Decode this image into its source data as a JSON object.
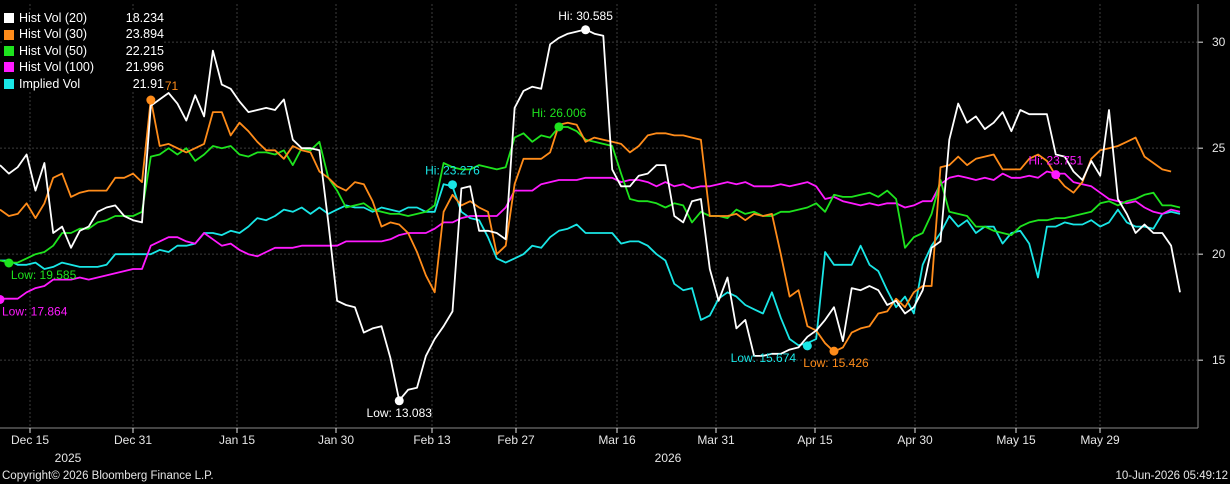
{
  "chart_data": {
    "type": "line",
    "x_axis": {
      "tick_labels": [
        "Dec 15",
        "Dec 31",
        "Jan 15",
        "Jan 30",
        "Feb 13",
        "Feb 27",
        "Mar 16",
        "Mar 31",
        "Apr 15",
        "Apr 30",
        "May 15",
        "May 29"
      ],
      "year_labels": [
        "2025",
        "2026"
      ]
    },
    "y_axis": {
      "ticks": [
        15,
        20,
        25,
        30
      ],
      "ylim": [
        11.8,
        31.8
      ],
      "side": "right",
      "grid": true
    },
    "series": [
      {
        "name": "Hist Vol (20)",
        "last": "18.234",
        "color": "#ffffff",
        "values": [
          24.2,
          23.8,
          24.1,
          24.7,
          23.0,
          24.3,
          21.0,
          21.3,
          20.3,
          21.1,
          21.3,
          22.0,
          22.2,
          22.3,
          21.8,
          21.6,
          21.5,
          27.0,
          27.3,
          27.6,
          27.1,
          26.3,
          27.5,
          26.5,
          29.6,
          28.0,
          27.8,
          27.2,
          26.7,
          26.8,
          26.9,
          26.8,
          27.3,
          25.4,
          25.0,
          25.0,
          24.9,
          21.5,
          17.8,
          17.6,
          17.5,
          16.3,
          16.5,
          16.6,
          15.1,
          13.1,
          13.6,
          13.7,
          15.2,
          16.0,
          16.6,
          17.3,
          23.1,
          23.2,
          21.1,
          21.1,
          21.0,
          20.7,
          26.9,
          27.7,
          27.9,
          27.8,
          29.9,
          30.2,
          30.4,
          30.5,
          30.6,
          30.4,
          30.3,
          24.0,
          23.2,
          23.2,
          23.7,
          23.8,
          24.2,
          24.2,
          21.8,
          21.5,
          22.5,
          22.6,
          19.3,
          17.8,
          18.9,
          16.5,
          16.9,
          15.2,
          15.2,
          15.3,
          15.3,
          15.5,
          15.6,
          16.1,
          16.4,
          16.9,
          17.5,
          15.9,
          18.4,
          18.3,
          18.5,
          18.3,
          17.6,
          17.8,
          17.2,
          17.5,
          18.3,
          20.3,
          20.6,
          25.4,
          27.1,
          26.2,
          26.5,
          25.9,
          26.2,
          26.7,
          25.8,
          26.8,
          26.6,
          26.6,
          26.6,
          24.7,
          24.6,
          23.9,
          23.5,
          24.4,
          23.7,
          26.8,
          22.6,
          21.9,
          21.0,
          21.4,
          21.0,
          21.0,
          20.4,
          18.2
        ]
      },
      {
        "name": "Hist Vol (30)",
        "last": "23.894",
        "color": "#ff8c1a",
        "values": [
          22.1,
          21.8,
          21.9,
          22.4,
          21.7,
          22.4,
          23.6,
          23.8,
          22.7,
          22.9,
          23.0,
          23.0,
          23.0,
          23.6,
          23.6,
          23.8,
          23.4,
          27.3,
          25.1,
          25.2,
          25.0,
          24.8,
          25.0,
          25.2,
          26.7,
          26.7,
          25.6,
          26.2,
          25.8,
          25.3,
          24.9,
          24.9,
          24.5,
          25.1,
          24.9,
          24.8,
          23.9,
          23.6,
          23.2,
          23.0,
          23.4,
          23.3,
          22.5,
          21.3,
          21.5,
          21.4,
          21.0,
          20.1,
          19.0,
          18.2,
          22.0,
          22.8,
          22.3,
          22.5,
          22.2,
          22.0,
          20.0,
          20.4,
          23.3,
          24.5,
          24.5,
          24.5,
          24.8,
          26.1,
          26.2,
          26.1,
          25.3,
          25.5,
          25.4,
          25.3,
          25.2,
          24.8,
          25.1,
          25.6,
          25.7,
          25.7,
          25.6,
          25.6,
          25.5,
          25.4,
          21.8,
          21.8,
          21.8,
          21.9,
          21.6,
          21.9,
          21.8,
          21.9,
          20.0,
          18.0,
          18.3,
          16.6,
          16.4,
          15.8,
          15.4,
          15.6,
          16.3,
          16.5,
          16.6,
          17.2,
          17.3,
          17.9,
          17.5,
          18.2,
          18.5,
          18.5,
          24.1,
          24.2,
          24.6,
          24.2,
          24.5,
          24.6,
          24.7,
          24.0,
          24.0,
          24.0,
          24.5,
          24.7,
          24.4,
          23.7,
          23.2,
          22.9,
          23.4,
          24.5,
          24.9,
          25.0,
          25.1,
          25.3,
          25.5,
          24.6,
          24.3,
          24.0,
          23.9
        ]
      },
      {
        "name": "Hist Vol (50)",
        "last": "22.215",
        "color": "#1ee31e",
        "values": [
          19.7,
          19.6,
          19.6,
          19.8,
          20.0,
          20.1,
          20.4,
          21.0,
          21.0,
          21.2,
          21.2,
          21.5,
          21.6,
          21.8,
          21.8,
          21.8,
          22.0,
          24.6,
          24.7,
          25.0,
          24.7,
          25.0,
          24.4,
          24.7,
          25.1,
          25.0,
          25.1,
          24.7,
          24.6,
          24.8,
          24.8,
          24.7,
          24.9,
          24.2,
          25.0,
          24.9,
          25.3,
          23.6,
          23.0,
          22.2,
          22.3,
          22.4,
          22.1,
          22.0,
          21.9,
          21.9,
          21.8,
          21.9,
          22.0,
          22.3,
          24.3,
          24.1,
          24.0,
          24.0,
          24.2,
          24.1,
          24.0,
          24.1,
          25.5,
          25.7,
          25.3,
          25.6,
          25.5,
          26.0,
          26.0,
          25.8,
          25.4,
          25.3,
          25.2,
          25.1,
          23.8,
          22.6,
          22.5,
          22.5,
          22.4,
          22.2,
          22.4,
          22.3,
          21.5,
          22.0,
          21.8,
          21.8,
          21.7,
          22.1,
          21.9,
          22.0,
          21.8,
          21.8,
          22.0,
          22.0,
          22.1,
          22.2,
          22.4,
          22.0,
          22.8,
          22.7,
          22.7,
          22.8,
          22.9,
          22.7,
          23.0,
          22.6,
          20.3,
          20.8,
          21.0,
          21.9,
          23.5,
          22.0,
          21.9,
          21.8,
          21.3,
          21.3,
          21.1,
          21.0,
          20.9,
          21.3,
          21.5,
          21.6,
          21.6,
          21.7,
          21.7,
          21.8,
          21.9,
          22.0,
          22.4,
          22.5,
          22.3,
          22.5,
          22.6,
          22.8,
          22.9,
          22.3,
          22.3,
          22.2
        ]
      },
      {
        "name": "Hist Vol (100)",
        "last": "21.996",
        "color": "#ff1aff",
        "values": [
          17.9,
          17.9,
          17.9,
          18.2,
          18.4,
          18.5,
          18.8,
          18.8,
          18.8,
          18.9,
          18.8,
          18.9,
          19.0,
          19.1,
          19.2,
          19.3,
          19.3,
          20.4,
          20.6,
          20.8,
          20.8,
          20.6,
          20.5,
          21.0,
          20.7,
          20.4,
          20.5,
          20.2,
          20.0,
          19.9,
          20.1,
          20.3,
          20.3,
          20.3,
          20.4,
          20.4,
          20.4,
          20.4,
          20.4,
          20.6,
          20.6,
          20.6,
          20.6,
          20.6,
          20.7,
          20.9,
          21.0,
          21.0,
          21.0,
          21.2,
          21.5,
          21.5,
          21.7,
          21.8,
          21.8,
          21.8,
          21.8,
          22.2,
          23.0,
          23.0,
          23.0,
          23.3,
          23.4,
          23.5,
          23.5,
          23.5,
          23.6,
          23.6,
          23.6,
          23.6,
          23.4,
          23.5,
          23.5,
          23.4,
          23.2,
          23.4,
          23.2,
          23.3,
          23.1,
          23.2,
          23.2,
          23.3,
          23.4,
          23.3,
          23.4,
          23.2,
          23.2,
          23.2,
          23.3,
          23.2,
          23.3,
          23.4,
          23.2,
          22.6,
          22.7,
          22.5,
          22.4,
          22.3,
          22.4,
          22.3,
          22.4,
          22.4,
          22.2,
          22.3,
          22.5,
          22.5,
          23.3,
          23.6,
          23.7,
          23.6,
          23.5,
          23.6,
          23.5,
          23.8,
          23.6,
          23.6,
          23.7,
          23.6,
          23.9,
          23.8,
          23.8,
          23.4,
          23.3,
          23.2,
          22.9,
          22.6,
          22.5,
          22.4,
          22.5,
          22.2,
          22.0,
          21.9,
          22.1,
          22.0
        ]
      },
      {
        "name": "Implied Vol",
        "last": "21.91",
        "color": "#19e6e6",
        "values": [
          19.7,
          19.7,
          19.5,
          19.5,
          19.6,
          19.3,
          19.4,
          19.6,
          19.5,
          19.4,
          19.4,
          19.4,
          19.5,
          20.0,
          20.0,
          20.0,
          20.0,
          20.0,
          20.2,
          20.1,
          20.4,
          20.4,
          20.5,
          21.0,
          21.0,
          20.9,
          21.1,
          21.0,
          21.3,
          21.7,
          21.6,
          21.8,
          22.1,
          22.0,
          22.2,
          21.9,
          22.2,
          21.9,
          22.1,
          22.3,
          22.2,
          22.2,
          22.0,
          22.2,
          22.1,
          22.0,
          22.2,
          22.2,
          22.0,
          22.0,
          23.3,
          23.2,
          22.0,
          21.7,
          21.6,
          20.8,
          19.8,
          19.6,
          19.8,
          20.0,
          20.4,
          20.3,
          20.8,
          21.1,
          21.2,
          21.4,
          21.0,
          21.0,
          21.0,
          21.0,
          20.5,
          20.6,
          20.6,
          20.4,
          20.0,
          19.7,
          18.6,
          18.3,
          18.4,
          16.9,
          17.1,
          17.9,
          18.2,
          18.0,
          17.6,
          17.4,
          17.2,
          18.2,
          17.0,
          16.0,
          15.7,
          15.8,
          16.0,
          20.1,
          19.5,
          19.5,
          19.5,
          20.4,
          19.5,
          19.2,
          18.3,
          17.5,
          18.0,
          17.2,
          19.5,
          20.4,
          21.0,
          21.8,
          21.3,
          21.6,
          21.0,
          21.3,
          21.3,
          20.5,
          21.0,
          21.1,
          20.5,
          18.9,
          21.3,
          21.3,
          21.5,
          21.4,
          21.4,
          21.6,
          21.3,
          21.5,
          22.1,
          21.5,
          21.3,
          21.3,
          21.2,
          21.9,
          22.0,
          21.9
        ]
      }
    ],
    "annotations": [
      {
        "text": "Hi: 30.585",
        "series": 0,
        "index": 66,
        "value": 30.585,
        "color": "#ffffff"
      },
      {
        "text": "Low: 13.083",
        "series": 0,
        "index": 45,
        "value": 13.083,
        "color": "#ffffff"
      },
      {
        "text": "Hi: 27.271",
        "series": 1,
        "index": 17,
        "value": 27.271,
        "color": "#ff8c1a"
      },
      {
        "text": "Low: 15.426",
        "series": 1,
        "index": 94,
        "value": 15.426,
        "color": "#ff8c1a"
      },
      {
        "text": "Hi: 26.006",
        "series": 2,
        "index": 63,
        "value": 26.006,
        "color": "#1ee31e"
      },
      {
        "text": "Low: 19.585",
        "series": 2,
        "index": 1,
        "value": 19.585,
        "color": "#1ee31e"
      },
      {
        "text": "Hi: 23.751",
        "series": 3,
        "index": 119,
        "value": 23.751,
        "color": "#ff1aff"
      },
      {
        "text": "Low: 17.864",
        "series": 3,
        "index": 0,
        "value": 17.864,
        "color": "#ff1aff"
      },
      {
        "text": "Hi: 23.276",
        "series": 4,
        "index": 51,
        "value": 23.276,
        "color": "#19e6e6"
      },
      {
        "text": "Low: 15.674",
        "series": 4,
        "index": 91,
        "value": 15.674,
        "color": "#19e6e6"
      }
    ],
    "legend_position": "top-left"
  },
  "footer": {
    "copyright": "Copyright© 2026 Bloomberg Finance L.P.",
    "timestamp": "10-Jun-2026 05:49:12"
  },
  "colors": {
    "background": "#000000",
    "grid": "#3c3c3c",
    "axis_text": "#e6e6e6"
  }
}
